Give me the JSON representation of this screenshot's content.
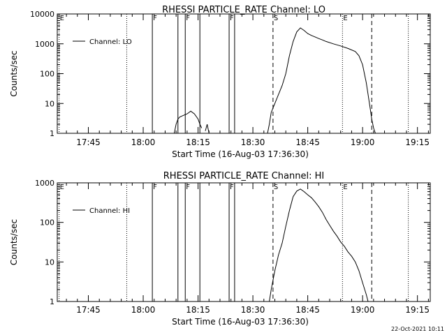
{
  "timestamp": "22-Oct-2021 10:11",
  "chart_data": [
    {
      "type": "line",
      "title": "RHESSI PARTICLE_RATE Channel: LO",
      "xlabel": "Start Time (16-Aug-03 17:36:30)",
      "ylabel": "Counts/sec",
      "y_scale": "log",
      "ylim": [
        1,
        10000
      ],
      "xlim": [
        "17:36:30",
        "19:18:30"
      ],
      "grid": false,
      "legend": {
        "position": "top-left",
        "entries": [
          "Channel: LO"
        ]
      },
      "x_ticks": [
        "17:45",
        "18:00",
        "18:15",
        "18:30",
        "18:45",
        "19:00",
        "19:15"
      ],
      "y_ticks": [
        {
          "value": 1,
          "label": "1"
        },
        {
          "value": 10,
          "label": "10"
        },
        {
          "value": 100,
          "label": "100"
        },
        {
          "value": 1000,
          "label": "1000"
        },
        {
          "value": 10000,
          "label": "10000"
        }
      ],
      "markers": [
        {
          "time": "17:37:00",
          "label": "E",
          "style": "dotted"
        },
        {
          "time": "17:55:30",
          "label": "",
          "style": "dotted"
        },
        {
          "time": "18:02:30",
          "label": "F",
          "style": "solid"
        },
        {
          "time": "18:09:30",
          "label": "",
          "style": "solid"
        },
        {
          "time": "18:11:30",
          "label": "F",
          "style": "solid"
        },
        {
          "time": "18:15:30",
          "label": "",
          "style": "solid"
        },
        {
          "time": "18:23:30",
          "label": "F",
          "style": "solid"
        },
        {
          "time": "18:25:00",
          "label": "",
          "style": "solid"
        },
        {
          "time": "18:35:30",
          "label": "S",
          "style": "dashed"
        },
        {
          "time": "18:54:30",
          "label": "E",
          "style": "dotted"
        },
        {
          "time": "19:02:30",
          "label": "",
          "style": "dashed"
        },
        {
          "time": "19:12:30",
          "label": "",
          "style": "dotted"
        }
      ],
      "series": [
        {
          "name": "Channel: LO",
          "segments": [
            [
              [
                "18:08:30",
                1
              ],
              [
                "18:09:00",
                2
              ],
              [
                "18:09:30",
                3
              ],
              [
                "18:10:00",
                3.5
              ],
              [
                "18:11:00",
                4
              ],
              [
                "18:12:00",
                4.5
              ],
              [
                "18:13:00",
                5.5
              ],
              [
                "18:14:00",
                4.5
              ],
              [
                "18:15:00",
                3
              ],
              [
                "18:15:30",
                2
              ],
              [
                "18:16:00",
                1.5
              ]
            ],
            [
              [
                "18:17:00",
                1.2
              ],
              [
                "18:17:30",
                2
              ],
              [
                "18:18:00",
                1
              ]
            ],
            [
              [
                "18:34:00",
                1
              ],
              [
                "18:34:30",
                2
              ],
              [
                "18:35:00",
                5
              ],
              [
                "18:36:00",
                10
              ],
              [
                "18:37:00",
                20
              ],
              [
                "18:38:00",
                40
              ],
              [
                "18:39:00",
                100
              ],
              [
                "18:40:00",
                400
              ],
              [
                "18:41:00",
                1200
              ],
              [
                "18:42:00",
                2500
              ],
              [
                "18:43:00",
                3400
              ],
              [
                "18:44:00",
                2800
              ],
              [
                "18:45:00",
                2200
              ],
              [
                "18:46:00",
                1900
              ],
              [
                "18:47:00",
                1700
              ],
              [
                "18:48:00",
                1500
              ],
              [
                "18:49:00",
                1350
              ],
              [
                "18:50:00",
                1200
              ],
              [
                "18:52:00",
                1000
              ],
              [
                "18:54:00",
                850
              ],
              [
                "18:56:00",
                700
              ],
              [
                "18:58:00",
                550
              ],
              [
                "18:59:00",
                400
              ],
              [
                "19:00:00",
                200
              ],
              [
                "19:01:00",
                50
              ],
              [
                "19:02:00",
                8
              ],
              [
                "19:02:30",
                3
              ],
              [
                "19:03:00",
                1.5
              ],
              [
                "19:03:30",
                1
              ]
            ]
          ]
        }
      ]
    },
    {
      "type": "line",
      "title": "RHESSI PARTICLE_RATE Channel: HI",
      "xlabel": "Start Time (16-Aug-03 17:36:30)",
      "ylabel": "Counts/sec",
      "y_scale": "log",
      "ylim": [
        1,
        1000
      ],
      "xlim": [
        "17:36:30",
        "19:18:30"
      ],
      "grid": false,
      "legend": {
        "position": "top-left",
        "entries": [
          "Channel: HI"
        ]
      },
      "x_ticks": [
        "17:45",
        "18:00",
        "18:15",
        "18:30",
        "18:45",
        "19:00",
        "19:15"
      ],
      "y_ticks": [
        {
          "value": 1,
          "label": "1"
        },
        {
          "value": 10,
          "label": "10"
        },
        {
          "value": 100,
          "label": "100"
        },
        {
          "value": 1000,
          "label": "1000"
        }
      ],
      "markers": [
        {
          "time": "17:37:00",
          "label": "E",
          "style": "dotted"
        },
        {
          "time": "17:55:30",
          "label": "",
          "style": "dotted"
        },
        {
          "time": "18:02:30",
          "label": "F",
          "style": "solid"
        },
        {
          "time": "18:09:30",
          "label": "",
          "style": "solid"
        },
        {
          "time": "18:11:30",
          "label": "F",
          "style": "solid"
        },
        {
          "time": "18:15:30",
          "label": "",
          "style": "solid"
        },
        {
          "time": "18:23:30",
          "label": "F",
          "style": "solid"
        },
        {
          "time": "18:25:00",
          "label": "",
          "style": "solid"
        },
        {
          "time": "18:35:30",
          "label": "S",
          "style": "dashed"
        },
        {
          "time": "18:54:30",
          "label": "E",
          "style": "dotted"
        },
        {
          "time": "19:02:30",
          "label": "",
          "style": "dashed"
        },
        {
          "time": "19:12:30",
          "label": "",
          "style": "dotted"
        }
      ],
      "series": [
        {
          "name": "Channel: HI",
          "segments": [
            [
              [
                "18:34:30",
                1
              ],
              [
                "18:35:00",
                2
              ],
              [
                "18:36:00",
                6
              ],
              [
                "18:37:00",
                15
              ],
              [
                "18:38:00",
                30
              ],
              [
                "18:39:00",
                80
              ],
              [
                "18:40:00",
                200
              ],
              [
                "18:41:00",
                450
              ],
              [
                "18:42:00",
                620
              ],
              [
                "18:43:00",
                700
              ],
              [
                "18:44:00",
                600
              ],
              [
                "18:45:00",
                500
              ],
              [
                "18:46:00",
                420
              ],
              [
                "18:47:00",
                330
              ],
              [
                "18:48:00",
                250
              ],
              [
                "18:49:00",
                180
              ],
              [
                "18:50:00",
                120
              ],
              [
                "18:51:00",
                85
              ],
              [
                "18:52:00",
                60
              ],
              [
                "18:53:00",
                45
              ],
              [
                "18:54:00",
                32
              ],
              [
                "18:55:00",
                25
              ],
              [
                "18:56:00",
                18
              ],
              [
                "18:57:00",
                14
              ],
              [
                "18:58:00",
                10
              ],
              [
                "18:59:00",
                6
              ],
              [
                "19:00:00",
                3
              ],
              [
                "19:01:00",
                1.5
              ],
              [
                "19:01:30",
                1
              ]
            ]
          ]
        }
      ]
    }
  ]
}
